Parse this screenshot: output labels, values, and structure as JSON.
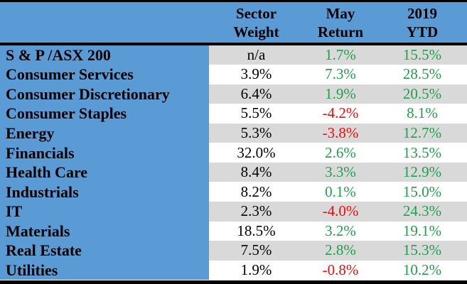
{
  "colors": {
    "header_blue": "#5B9BD5",
    "stripe_gray": "#D9D9D9",
    "positive_green": "#1FA04C",
    "negative_red": "#F20D0D",
    "border_black": "#000000"
  },
  "chart_data": {
    "type": "table",
    "title": "",
    "columns": [
      {
        "line1": "Sector",
        "line2": "Weight"
      },
      {
        "line1": "May",
        "line2": "Return"
      },
      {
        "line1": "2019",
        "line2": "YTD"
      }
    ],
    "rows": [
      {
        "sector": "S & P /ASX 200",
        "weight": "n/a",
        "may": "1.7%",
        "ytd": "15.5%"
      },
      {
        "sector": "Consumer Services",
        "weight": "3.9%",
        "may": "7.3%",
        "ytd": "28.5%"
      },
      {
        "sector": "Consumer Discretionary",
        "weight": "6.4%",
        "may": "1.9%",
        "ytd": "20.5%"
      },
      {
        "sector": "Consumer Staples",
        "weight": "5.5%",
        "may": "-4.2%",
        "ytd": "8.1%"
      },
      {
        "sector": "Energy",
        "weight": "5.3%",
        "may": "-3.8%",
        "ytd": "12.7%"
      },
      {
        "sector": "Financials",
        "weight": "32.0%",
        "may": "2.6%",
        "ytd": "13.5%"
      },
      {
        "sector": "Health Care",
        "weight": "8.4%",
        "may": "3.3%",
        "ytd": "12.9%"
      },
      {
        "sector": "Industrials",
        "weight": "8.2%",
        "may": "0.1%",
        "ytd": "15.0%"
      },
      {
        "sector": "IT",
        "weight": "2.3%",
        "may": "-4.0%",
        "ytd": "24.3%"
      },
      {
        "sector": "Materials",
        "weight": "18.5%",
        "may": "3.2%",
        "ytd": "19.1%"
      },
      {
        "sector": "Real Estate",
        "weight": "7.5%",
        "may": "2.8%",
        "ytd": "15.3%"
      },
      {
        "sector": "Utilities",
        "weight": "1.9%",
        "may": "-0.8%",
        "ytd": "10.2%"
      }
    ],
    "notes": {
      "value_color_rule": "May Return and 2019 YTD values are green when positive, red when negative; Sector Weight values are black",
      "row_striping": "odd rows gray, even rows white; sector label column solid blue"
    }
  }
}
